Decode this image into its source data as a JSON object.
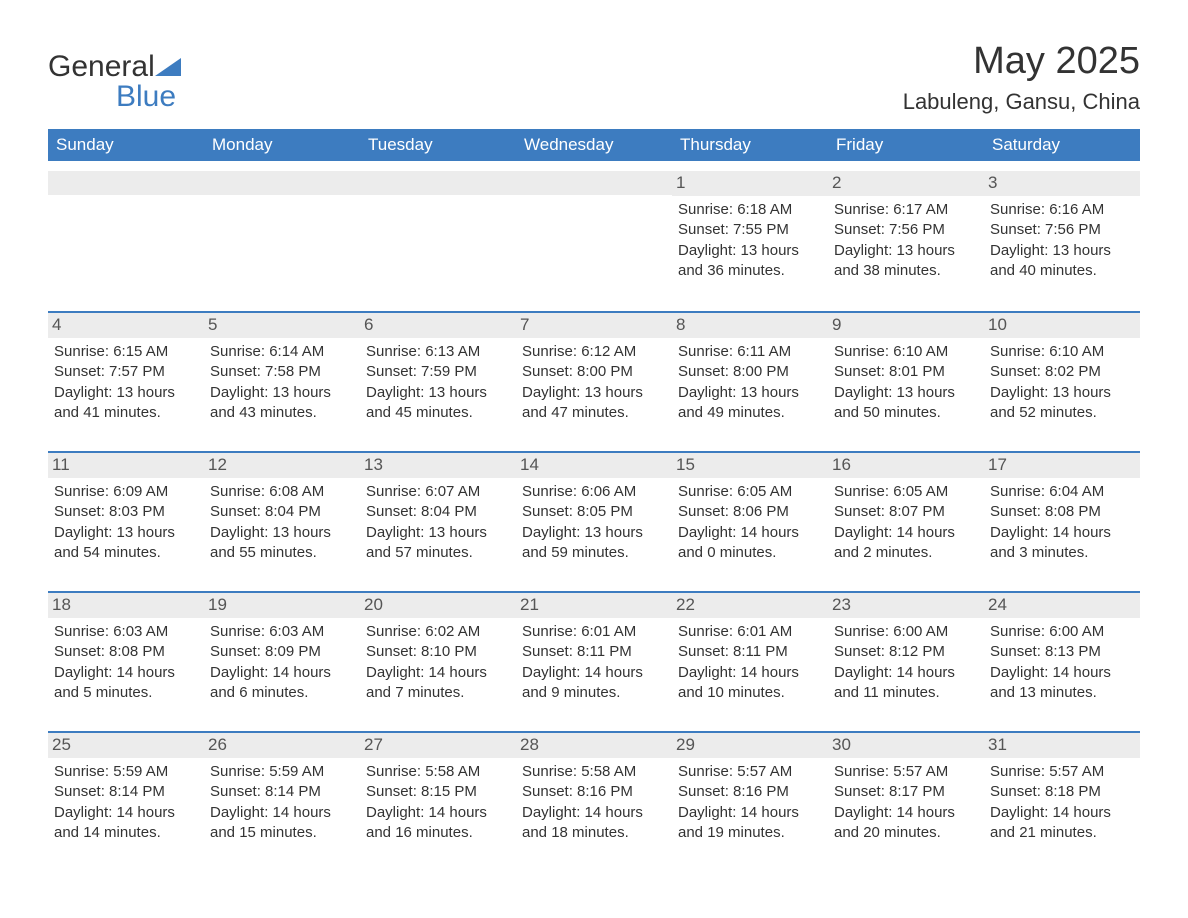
{
  "brand": {
    "word1": "General",
    "word2": "Blue"
  },
  "title": "May 2025",
  "location": "Labuleng, Gansu, China",
  "accent_color": "#3d7cc0",
  "header_bg": "#3d7cc0",
  "header_text_color": "#ffffff",
  "daybar_bg": "#ececec",
  "text_color": "#333333",
  "font_family": "Arial",
  "title_fontsize": 38,
  "location_fontsize": 22,
  "header_fontsize": 17,
  "daynum_fontsize": 17,
  "body_fontsize": 15,
  "day_headers": [
    "Sunday",
    "Monday",
    "Tuesday",
    "Wednesday",
    "Thursday",
    "Friday",
    "Saturday"
  ],
  "weeks": [
    [
      null,
      null,
      null,
      null,
      {
        "n": "1",
        "sunrise": "Sunrise: 6:18 AM",
        "sunset": "Sunset: 7:55 PM",
        "day1": "Daylight: 13 hours",
        "day2": "and 36 minutes."
      },
      {
        "n": "2",
        "sunrise": "Sunrise: 6:17 AM",
        "sunset": "Sunset: 7:56 PM",
        "day1": "Daylight: 13 hours",
        "day2": "and 38 minutes."
      },
      {
        "n": "3",
        "sunrise": "Sunrise: 6:16 AM",
        "sunset": "Sunset: 7:56 PM",
        "day1": "Daylight: 13 hours",
        "day2": "and 40 minutes."
      }
    ],
    [
      {
        "n": "4",
        "sunrise": "Sunrise: 6:15 AM",
        "sunset": "Sunset: 7:57 PM",
        "day1": "Daylight: 13 hours",
        "day2": "and 41 minutes."
      },
      {
        "n": "5",
        "sunrise": "Sunrise: 6:14 AM",
        "sunset": "Sunset: 7:58 PM",
        "day1": "Daylight: 13 hours",
        "day2": "and 43 minutes."
      },
      {
        "n": "6",
        "sunrise": "Sunrise: 6:13 AM",
        "sunset": "Sunset: 7:59 PM",
        "day1": "Daylight: 13 hours",
        "day2": "and 45 minutes."
      },
      {
        "n": "7",
        "sunrise": "Sunrise: 6:12 AM",
        "sunset": "Sunset: 8:00 PM",
        "day1": "Daylight: 13 hours",
        "day2": "and 47 minutes."
      },
      {
        "n": "8",
        "sunrise": "Sunrise: 6:11 AM",
        "sunset": "Sunset: 8:00 PM",
        "day1": "Daylight: 13 hours",
        "day2": "and 49 minutes."
      },
      {
        "n": "9",
        "sunrise": "Sunrise: 6:10 AM",
        "sunset": "Sunset: 8:01 PM",
        "day1": "Daylight: 13 hours",
        "day2": "and 50 minutes."
      },
      {
        "n": "10",
        "sunrise": "Sunrise: 6:10 AM",
        "sunset": "Sunset: 8:02 PM",
        "day1": "Daylight: 13 hours",
        "day2": "and 52 minutes."
      }
    ],
    [
      {
        "n": "11",
        "sunrise": "Sunrise: 6:09 AM",
        "sunset": "Sunset: 8:03 PM",
        "day1": "Daylight: 13 hours",
        "day2": "and 54 minutes."
      },
      {
        "n": "12",
        "sunrise": "Sunrise: 6:08 AM",
        "sunset": "Sunset: 8:04 PM",
        "day1": "Daylight: 13 hours",
        "day2": "and 55 minutes."
      },
      {
        "n": "13",
        "sunrise": "Sunrise: 6:07 AM",
        "sunset": "Sunset: 8:04 PM",
        "day1": "Daylight: 13 hours",
        "day2": "and 57 minutes."
      },
      {
        "n": "14",
        "sunrise": "Sunrise: 6:06 AM",
        "sunset": "Sunset: 8:05 PM",
        "day1": "Daylight: 13 hours",
        "day2": "and 59 minutes."
      },
      {
        "n": "15",
        "sunrise": "Sunrise: 6:05 AM",
        "sunset": "Sunset: 8:06 PM",
        "day1": "Daylight: 14 hours",
        "day2": "and 0 minutes."
      },
      {
        "n": "16",
        "sunrise": "Sunrise: 6:05 AM",
        "sunset": "Sunset: 8:07 PM",
        "day1": "Daylight: 14 hours",
        "day2": "and 2 minutes."
      },
      {
        "n": "17",
        "sunrise": "Sunrise: 6:04 AM",
        "sunset": "Sunset: 8:08 PM",
        "day1": "Daylight: 14 hours",
        "day2": "and 3 minutes."
      }
    ],
    [
      {
        "n": "18",
        "sunrise": "Sunrise: 6:03 AM",
        "sunset": "Sunset: 8:08 PM",
        "day1": "Daylight: 14 hours",
        "day2": "and 5 minutes."
      },
      {
        "n": "19",
        "sunrise": "Sunrise: 6:03 AM",
        "sunset": "Sunset: 8:09 PM",
        "day1": "Daylight: 14 hours",
        "day2": "and 6 minutes."
      },
      {
        "n": "20",
        "sunrise": "Sunrise: 6:02 AM",
        "sunset": "Sunset: 8:10 PM",
        "day1": "Daylight: 14 hours",
        "day2": "and 7 minutes."
      },
      {
        "n": "21",
        "sunrise": "Sunrise: 6:01 AM",
        "sunset": "Sunset: 8:11 PM",
        "day1": "Daylight: 14 hours",
        "day2": "and 9 minutes."
      },
      {
        "n": "22",
        "sunrise": "Sunrise: 6:01 AM",
        "sunset": "Sunset: 8:11 PM",
        "day1": "Daylight: 14 hours",
        "day2": "and 10 minutes."
      },
      {
        "n": "23",
        "sunrise": "Sunrise: 6:00 AM",
        "sunset": "Sunset: 8:12 PM",
        "day1": "Daylight: 14 hours",
        "day2": "and 11 minutes."
      },
      {
        "n": "24",
        "sunrise": "Sunrise: 6:00 AM",
        "sunset": "Sunset: 8:13 PM",
        "day1": "Daylight: 14 hours",
        "day2": "and 13 minutes."
      }
    ],
    [
      {
        "n": "25",
        "sunrise": "Sunrise: 5:59 AM",
        "sunset": "Sunset: 8:14 PM",
        "day1": "Daylight: 14 hours",
        "day2": "and 14 minutes."
      },
      {
        "n": "26",
        "sunrise": "Sunrise: 5:59 AM",
        "sunset": "Sunset: 8:14 PM",
        "day1": "Daylight: 14 hours",
        "day2": "and 15 minutes."
      },
      {
        "n": "27",
        "sunrise": "Sunrise: 5:58 AM",
        "sunset": "Sunset: 8:15 PM",
        "day1": "Daylight: 14 hours",
        "day2": "and 16 minutes."
      },
      {
        "n": "28",
        "sunrise": "Sunrise: 5:58 AM",
        "sunset": "Sunset: 8:16 PM",
        "day1": "Daylight: 14 hours",
        "day2": "and 18 minutes."
      },
      {
        "n": "29",
        "sunrise": "Sunrise: 5:57 AM",
        "sunset": "Sunset: 8:16 PM",
        "day1": "Daylight: 14 hours",
        "day2": "and 19 minutes."
      },
      {
        "n": "30",
        "sunrise": "Sunrise: 5:57 AM",
        "sunset": "Sunset: 8:17 PM",
        "day1": "Daylight: 14 hours",
        "day2": "and 20 minutes."
      },
      {
        "n": "31",
        "sunrise": "Sunrise: 5:57 AM",
        "sunset": "Sunset: 8:18 PM",
        "day1": "Daylight: 14 hours",
        "day2": "and 21 minutes."
      }
    ]
  ]
}
